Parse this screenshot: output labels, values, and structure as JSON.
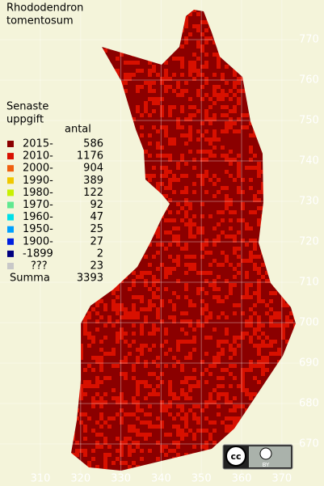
{
  "map": {
    "title": [
      "Rhododendron",
      "tomentosum"
    ],
    "legend_title": [
      "Senaste",
      "uppgift"
    ],
    "count_header": "antal",
    "legend": [
      {
        "label": "2015-",
        "count": 586,
        "color": "#8b0000"
      },
      {
        "label": "2010-",
        "count": 1176,
        "color": "#d81000"
      },
      {
        "label": "2000-",
        "count": 904,
        "color": "#f06010"
      },
      {
        "label": "1990-",
        "count": 389,
        "color": "#f0c800"
      },
      {
        "label": "1980-",
        "count": 122,
        "color": "#c8f000"
      },
      {
        "label": "1970-",
        "count": 92,
        "color": "#60e890"
      },
      {
        "label": "1960-",
        "count": 47,
        "color": "#00e0e8"
      },
      {
        "label": "1950-",
        "count": 25,
        "color": "#00a0ff"
      },
      {
        "label": "1900-",
        "count": 27,
        "color": "#0020e0"
      },
      {
        "label": "-1899",
        "count": 2,
        "color": "#000080"
      },
      {
        "label": "???",
        "count": 23,
        "color": "#c8c8c8"
      }
    ],
    "total_label": "Summa",
    "total": 3393,
    "xticks": [
      310,
      320,
      330,
      340,
      350,
      360,
      370
    ],
    "yticks": [
      770,
      760,
      750,
      740,
      730,
      720,
      710,
      700,
      690,
      680,
      670
    ],
    "license_logo": "cc",
    "license": "BY"
  }
}
